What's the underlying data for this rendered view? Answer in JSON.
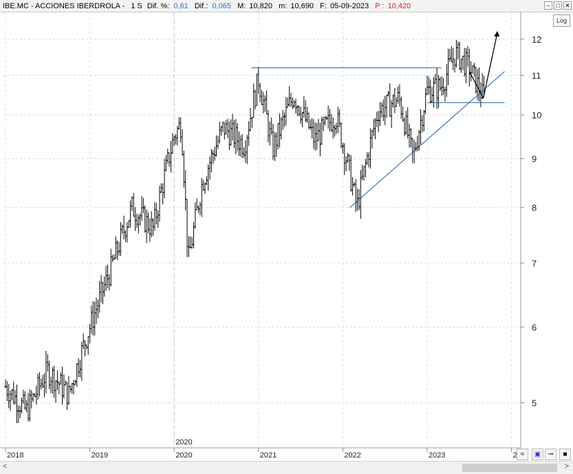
{
  "header": {
    "symbol": "IBE.MC - ACCIONES IBERDROLA -",
    "period": "1 S",
    "dif_pct_label": "Dif. %:",
    "dif_pct_value": "0,61",
    "dif_label": "Dif.:",
    "dif_value": "0,065",
    "max_label": "M:",
    "max_value": "10,820",
    "min_label": "m:",
    "min_value": "10,690",
    "date_label": "F:",
    "date_value": "05-09-2023",
    "price_label": "P :",
    "price_value": "10,420"
  },
  "window_buttons": {
    "minimize": "–",
    "maximize": "□",
    "close": "✕"
  },
  "log_button": "Log",
  "bottom_icons": {
    "chart_style": "≈",
    "save": "▣",
    "pin": "⊸",
    "color": "■"
  },
  "chart_data": {
    "type": "bar",
    "scale": "log",
    "ylim": [
      4.5,
      12.8
    ],
    "y_ticks": [
      5,
      6,
      7,
      8,
      9,
      10,
      11,
      12
    ],
    "x_ticks": [
      "2018",
      "2019",
      "2020",
      "2021",
      "2022",
      "2023",
      "2"
    ],
    "marker_label": "2020",
    "series": [
      {
        "x": [
          "2018-01",
          "2018-04",
          "2018-07",
          "2018-10",
          "2019-01",
          "2019-04",
          "2019-07",
          "2019-10",
          "2020-01",
          "2020-02",
          "2020-03",
          "2020-05",
          "2020-08",
          "2020-11",
          "2021-01",
          "2021-03",
          "2021-06",
          "2021-09",
          "2021-12",
          "2022-03",
          "2022-06",
          "2022-09",
          "2022-11",
          "2023-01",
          "2023-03",
          "2023-05",
          "2023-07",
          "2023-09"
        ],
        "values": [
          5.2,
          4.9,
          5.4,
          5.1,
          6.0,
          6.9,
          8.0,
          7.6,
          9.5,
          9.8,
          7.0,
          8.5,
          9.7,
          9.3,
          10.9,
          9.2,
          10.5,
          9.4,
          10.0,
          8.0,
          10.1,
          10.4,
          9.0,
          10.6,
          10.7,
          11.6,
          11.2,
          10.42
        ]
      }
    ],
    "lines": [
      {
        "from": [
          "2020-12",
          11.2
        ],
        "to": [
          "2023-03",
          11.2
        ],
        "color": "#1a5fa8"
      },
      {
        "from": [
          "2023-01",
          10.3
        ],
        "to": [
          "2023-12",
          10.3
        ],
        "color": "#1a5fa8"
      },
      {
        "from": [
          "2022-02",
          8.0
        ],
        "to": [
          "2023-12",
          11.1
        ],
        "color": "#1a5fa8"
      }
    ],
    "forecast_arrow": {
      "from": [
        "2023-07",
        11.1
      ],
      "via": [
        "2023-09",
        10.42
      ],
      "to": [
        "2023-11",
        12.2
      ]
    }
  }
}
